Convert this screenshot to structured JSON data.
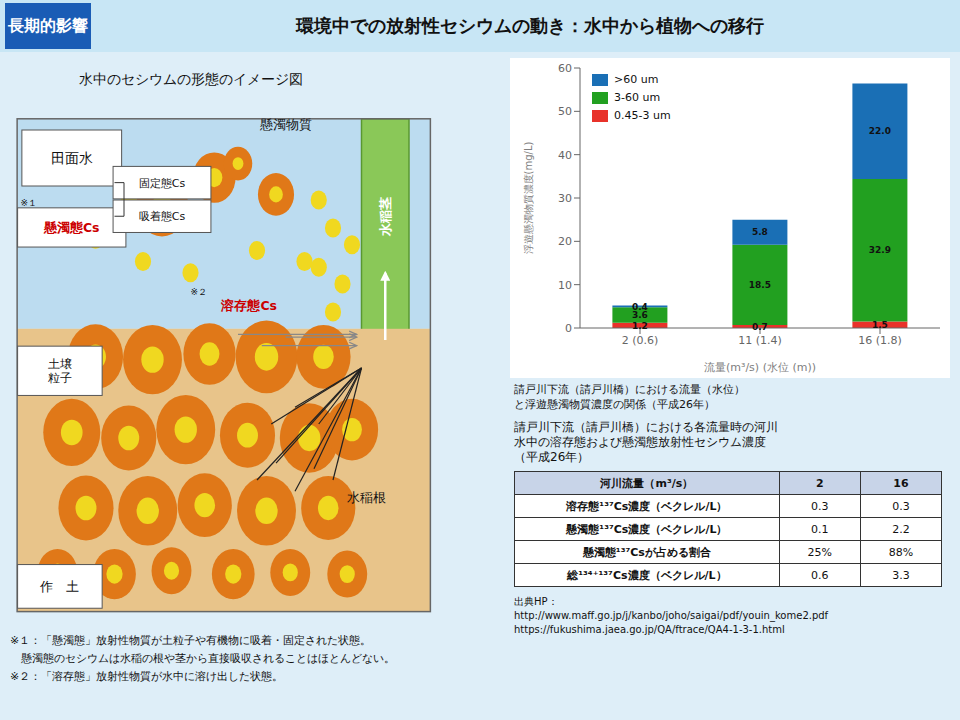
{
  "title": "環境中での放射性セシウムの動き：水中から植物への移行",
  "subtitle": "長期的影響",
  "annotations": [
    "出典HP：",
    "http://www.maff.go.jp/j/kanbo/joho/saigai/pdf/youin_kome2.pdf",
    "https://fukushima.jaea.go.jp/QA/ftrace/QA4-1-3-1.html",
    "※１：「懸濁態」放射性物質が土粒子や有機物に吸着・固定された状態。",
    "　懸濁態のセシウムは水稲の根や茎から直接吸収されることはほとんどない。",
    "※２：「溶存態」放射性物質が水中に溶け出した状態。"
  ],
  "chart_data": [
    {
      "type": "bar",
      "stacked": true,
      "data_labels": true,
      "grid": false,
      "legend": "upper left",
      "annotations": [
        "請戸川下流（請戸川橋）における流量（水位）",
        "と浮遊懸濁物質濃度の関係（平成26年）"
      ],
      "x_label": "流量(m³/s) (水位 (m))",
      "y_label": "浮遊懸濁物質濃度(mg/L)",
      "categories": [
        "2 (0.6)",
        "11 (1.4)",
        "16 (1.8)"
      ],
      "series": [
        {
          "name": "0.45-3 um",
          "color": "#e8322a",
          "values": [
            1.2,
            0.7,
            1.5
          ]
        },
        {
          "name": "3-60 um",
          "color": "#22a020",
          "values": [
            3.6,
            18.5,
            32.9
          ]
        },
        {
          "name": ">60 um",
          "color": "#1a6fb5",
          "values": [
            0.4,
            5.8,
            22.0
          ],
          "value_labels": [
            "0.4",
            "5.8",
            "22.0"
          ]
        }
      ],
      "ylim": [
        0,
        60
      ],
      "yticks": [
        0,
        10,
        20,
        30,
        40,
        50,
        60
      ]
    },
    {
      "type": "table",
      "annotations": [
        "請戸川下流（請戸川橋）における各流量時の河川",
        "水中の溶存態および懸濁態放射性セシウム濃度",
        "（平成26年）"
      ],
      "header": [
        "河川流量（m³/s）",
        "2",
        "16"
      ],
      "rows": [
        [
          "溶存態¹³⁷Cs濃度（ベクレル/L）",
          "0.3",
          "0.3"
        ],
        [
          "懸濁態¹³⁷Cs濃度（ベクレル/L）",
          "0.1",
          "2.2"
        ],
        [
          "懸濁態¹³⁷Csが占める割合",
          "25%",
          "88%"
        ],
        [
          "総¹³⁴⁺¹³⁷Cs濃度（ベクレル/L）",
          "0.6",
          "3.3"
        ]
      ]
    },
    {
      "type": "diagram",
      "title": "水中のセシウムの形態のイメージ図",
      "annotations": [
        "田面水",
        "懸濁物質",
        "※１",
        "懸濁態Cs",
        "固定態Cs",
        "吸着態Cs",
        "※２",
        "溶存態Cs",
        "水稲茎",
        "土壌\n粒子",
        "作　土",
        "水稲根"
      ]
    }
  ]
}
